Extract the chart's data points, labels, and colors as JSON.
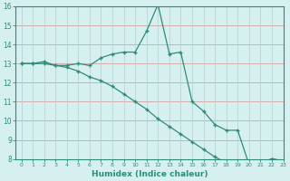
{
  "xlabel": "Humidex (Indice chaleur)",
  "x": [
    0,
    1,
    2,
    3,
    4,
    5,
    6,
    7,
    8,
    9,
    10,
    11,
    12,
    13,
    14,
    15,
    16,
    17,
    18,
    19,
    20,
    21,
    22,
    23
  ],
  "line1": [
    13.0,
    13.0,
    13.1,
    12.9,
    12.9,
    13.0,
    12.9,
    13.3,
    13.5,
    13.6,
    13.6,
    14.7,
    16.1,
    13.5,
    13.6,
    11.0,
    10.5,
    9.8,
    9.5,
    9.5,
    7.7,
    7.8,
    8.0,
    7.9
  ],
  "line2": [
    13.0,
    13.0,
    13.0,
    12.9,
    12.8,
    12.6,
    12.3,
    12.1,
    11.8,
    11.4,
    11.0,
    10.6,
    10.1,
    9.7,
    9.3,
    8.9,
    8.5,
    8.1,
    7.8,
    7.7,
    7.7,
    7.8,
    8.0,
    7.9
  ],
  "line_color": "#2e8b7a",
  "bg_color": "#d6f0f0",
  "grid_color_h": "#d4a0a0",
  "grid_color_v": "#b8d4d4",
  "ylim": [
    8,
    16
  ],
  "yticks": [
    8,
    9,
    10,
    11,
    12,
    13,
    14,
    15,
    16
  ],
  "xlim": [
    -0.5,
    23
  ],
  "xticks": [
    0,
    1,
    2,
    3,
    4,
    5,
    6,
    7,
    8,
    9,
    10,
    11,
    12,
    13,
    14,
    15,
    16,
    17,
    18,
    19,
    20,
    21,
    22,
    23
  ]
}
